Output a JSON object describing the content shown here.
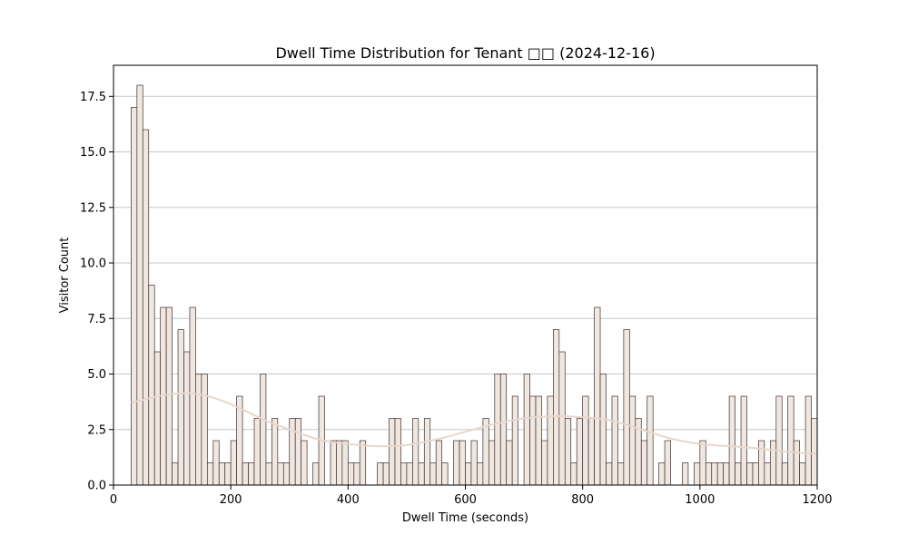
{
  "chart_data": {
    "type": "bar",
    "title": "Dwell Time Distribution for Tenant □□ (2024-12-16)",
    "xlabel": "Dwell Time (seconds)",
    "ylabel": "Visitor Count",
    "xlim": [
      0,
      1200
    ],
    "ylim": [
      0,
      18.9
    ],
    "xticks": [
      "0",
      "200",
      "400",
      "600",
      "800",
      "1000",
      "1200"
    ],
    "yticks": [
      "0.0",
      "2.5",
      "5.0",
      "7.5",
      "10.0",
      "12.5",
      "15.0",
      "17.5"
    ],
    "grid": "horizontal",
    "bin_start": 30,
    "bin_width": 10,
    "values": [
      17,
      18,
      16,
      9,
      6,
      8,
      8,
      1,
      7,
      6,
      8,
      5,
      5,
      1,
      2,
      1,
      1,
      2,
      4,
      1,
      1,
      3,
      5,
      1,
      3,
      1,
      1,
      3,
      3,
      2,
      0,
      1,
      4,
      0,
      2,
      2,
      2,
      1,
      1,
      2,
      0,
      0,
      1,
      1,
      3,
      3,
      1,
      1,
      3,
      1,
      3,
      1,
      2,
      1,
      0,
      2,
      2,
      1,
      2,
      1,
      3,
      2,
      5,
      5,
      2,
      4,
      0,
      5,
      4,
      4,
      2,
      4,
      7,
      6,
      3,
      1,
      3,
      4,
      3,
      8,
      5,
      1,
      4,
      1,
      7,
      4,
      3,
      2,
      4,
      0,
      1,
      2,
      0,
      0,
      1,
      0,
      1,
      2,
      1,
      1,
      1,
      1,
      4,
      1,
      4,
      1,
      1,
      2,
      1,
      2,
      4,
      1,
      4,
      2,
      1,
      4,
      3
    ],
    "kde": {
      "x": [
        30,
        60,
        100,
        140,
        180,
        220,
        260,
        300,
        350,
        400,
        450,
        500,
        550,
        600,
        650,
        700,
        750,
        800,
        850,
        900,
        950,
        1000,
        1050,
        1100,
        1150,
        1200
      ],
      "y": [
        3.7,
        3.9,
        4.1,
        4.1,
        3.85,
        3.4,
        2.9,
        2.5,
        2.05,
        1.85,
        1.75,
        1.8,
        2.05,
        2.4,
        2.75,
        3.0,
        3.1,
        3.05,
        2.9,
        2.5,
        2.1,
        1.85,
        1.75,
        1.65,
        1.5,
        1.4
      ]
    },
    "colors": {
      "bar_fill": "#f1e7e1",
      "bar_edge": "#3a3030",
      "kde_line": "#e8d6cc",
      "grid": "#c8c8c8"
    }
  }
}
